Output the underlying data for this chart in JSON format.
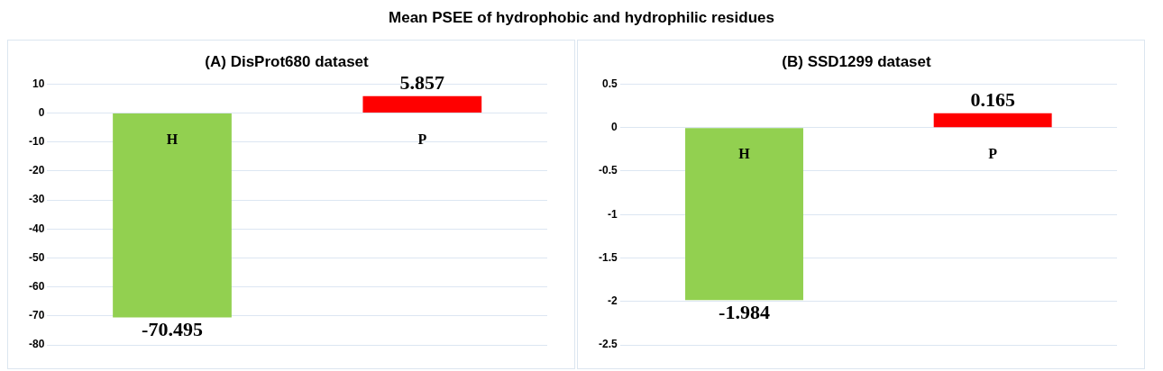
{
  "chart_data": [
    {
      "type": "other",
      "title": "Mean PSEE of hydrophobic and hydrophilic residues"
    },
    {
      "type": "bar",
      "title": "(A) DisProt680 dataset",
      "categories": [
        "H",
        "P"
      ],
      "values": [
        -70.495,
        5.857
      ],
      "colors": [
        "#92d050",
        "#ff0000"
      ],
      "ylim": [
        -80,
        10
      ],
      "yticks": [
        -80,
        -70,
        -60,
        -50,
        -40,
        -30,
        -20,
        -10,
        0,
        10
      ],
      "grid": "y",
      "data_labels": true,
      "legend": false
    },
    {
      "type": "bar",
      "title": "(B) SSD1299 dataset",
      "categories": [
        "H",
        "P"
      ],
      "values": [
        -1.984,
        0.165
      ],
      "colors": [
        "#92d050",
        "#ff0000"
      ],
      "ylim": [
        -2.5,
        0.5
      ],
      "yticks": [
        -2.5,
        -2,
        -1.5,
        -1,
        -0.5,
        0,
        0.5
      ],
      "grid": "y",
      "data_labels": true,
      "legend": false
    }
  ]
}
